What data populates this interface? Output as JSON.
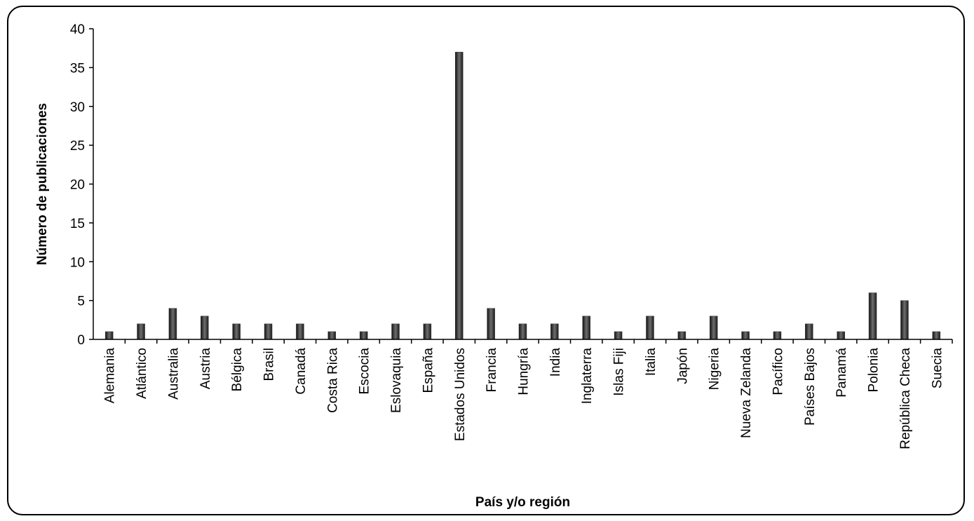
{
  "chart_data": {
    "type": "bar",
    "categories": [
      "Alemania",
      "Atlántico",
      "Australia",
      "Austria",
      "Bélgica",
      "Brasil",
      "Canadá",
      "Costa Rica",
      "Escocia",
      "Eslovaquia",
      "España",
      "Estados Unidos",
      "Francia",
      "Hungría",
      "India",
      "Inglaterra",
      "Islas Fiji",
      "Italia",
      "Japón",
      "Nigeria",
      "Nueva Zelanda",
      "Pacífico",
      "Países Bajos",
      "Panamá",
      "Polonia",
      "República Checa",
      "Suecia"
    ],
    "values": [
      1,
      2,
      4,
      3,
      2,
      2,
      2,
      1,
      1,
      2,
      2,
      37,
      4,
      2,
      2,
      3,
      1,
      3,
      1,
      3,
      1,
      1,
      2,
      1,
      6,
      5,
      1
    ],
    "xlabel": "País y/o región",
    "ylabel": "Número de publicaciones",
    "ylim": [
      0,
      40
    ],
    "yticks": [
      0,
      5,
      10,
      15,
      20,
      25,
      30,
      35,
      40
    ],
    "grid": false,
    "legend": "none",
    "bar_color": "#3a3a3a"
  }
}
